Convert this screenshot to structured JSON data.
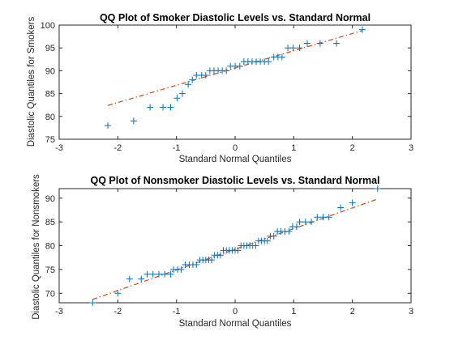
{
  "colors": {
    "points": "#0072BD",
    "reference_line": "#D95319",
    "axes": "#262626"
  },
  "chart_data": [
    {
      "type": "scatter",
      "title": "QQ Plot of Smoker Diastolic Levels vs. Standard Normal",
      "xlabel": "Standard Normal Quantiles",
      "ylabel": "Diastolic Quantiles for Smokers",
      "xlim": [
        -3,
        3
      ],
      "ylim": [
        75,
        100
      ],
      "xticks": [
        -3,
        -2,
        -1,
        0,
        1,
        2,
        3
      ],
      "yticks": [
        75,
        80,
        85,
        90,
        95,
        100
      ],
      "grid": false,
      "marker": "+",
      "series": [
        {
          "type": "scatter",
          "x": [
            -2.17,
            -1.73,
            -1.45,
            -1.23,
            -1.1,
            -0.99,
            -0.9,
            -0.8,
            -0.73,
            -0.66,
            -0.57,
            -0.5,
            -0.43,
            -0.36,
            -0.29,
            -0.22,
            -0.15,
            -0.08,
            0.0,
            0.08,
            0.15,
            0.22,
            0.29,
            0.36,
            0.43,
            0.5,
            0.57,
            0.66,
            0.73,
            0.8,
            0.9,
            0.99,
            1.1,
            1.23,
            1.45,
            1.73,
            2.17
          ],
          "y": [
            78,
            79,
            82,
            82,
            82,
            84,
            85,
            87,
            88,
            89,
            89,
            89,
            90,
            90,
            90,
            90,
            90,
            91,
            91,
            91,
            92,
            92,
            92,
            92,
            92,
            92,
            92,
            93,
            93,
            93,
            95,
            95,
            95,
            96,
            96,
            96,
            99
          ]
        },
        {
          "type": "line",
          "style": "dash-dot",
          "x": [
            -2.17,
            2.17
          ],
          "y": [
            82.4,
            98.8
          ]
        }
      ]
    },
    {
      "type": "scatter",
      "title": "QQ Plot of Nonsmoker Diastolic Levels vs. Standard Normal",
      "xlabel": "Standard Normal Quantiles",
      "ylabel": "Diastolic Quantiles for Nonsmokers",
      "xlim": [
        -3,
        3
      ],
      "ylim": [
        68,
        92
      ],
      "xticks": [
        -3,
        -2,
        -1,
        0,
        1,
        2,
        3
      ],
      "yticks": [
        70,
        75,
        80,
        85,
        90
      ],
      "grid": false,
      "marker": "+",
      "series": [
        {
          "type": "scatter",
          "x": [
            -2.43,
            -2.0,
            -1.8,
            -1.6,
            -1.5,
            -1.4,
            -1.3,
            -1.2,
            -1.1,
            -1.05,
            -0.98,
            -0.92,
            -0.85,
            -0.78,
            -0.72,
            -0.66,
            -0.6,
            -0.55,
            -0.5,
            -0.45,
            -0.4,
            -0.35,
            -0.3,
            -0.25,
            -0.2,
            -0.15,
            -0.1,
            -0.05,
            0.0,
            0.05,
            0.1,
            0.15,
            0.2,
            0.25,
            0.3,
            0.35,
            0.4,
            0.45,
            0.5,
            0.55,
            0.6,
            0.66,
            0.72,
            0.78,
            0.85,
            0.92,
            0.98,
            1.05,
            1.1,
            1.2,
            1.3,
            1.4,
            1.5,
            1.6,
            1.8,
            2.0,
            2.43
          ],
          "y": [
            68,
            70,
            73,
            73,
            74,
            74,
            74,
            74,
            74,
            75,
            75,
            75,
            76,
            76,
            76,
            76,
            77,
            77,
            77,
            77,
            77,
            78,
            78,
            78,
            79,
            79,
            79,
            79,
            79,
            79,
            80,
            80,
            80,
            80,
            80,
            80,
            81,
            81,
            81,
            81,
            82,
            82,
            83,
            83,
            83,
            83,
            84,
            84,
            85,
            85,
            85,
            86,
            86,
            86,
            88,
            89,
            92
          ]
        },
        {
          "type": "line",
          "style": "dash-dot",
          "x": [
            -2.43,
            2.43
          ],
          "y": [
            68.7,
            89.8
          ]
        }
      ]
    }
  ]
}
